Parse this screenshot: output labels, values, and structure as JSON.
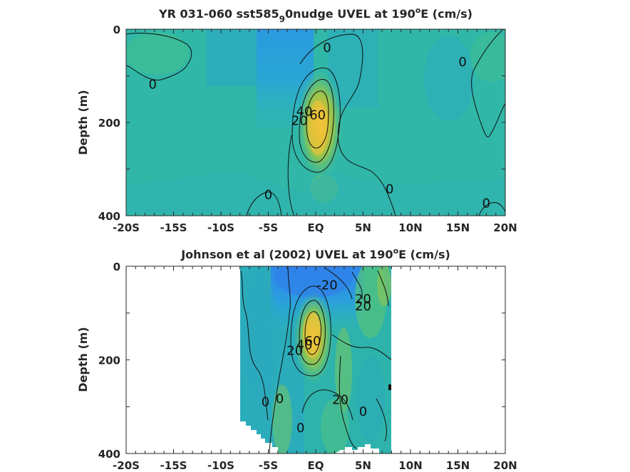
{
  "chart_data": [
    {
      "type": "heatmap",
      "title_main": "YR 031-060 sst585",
      "title_sub": "9",
      "title_rest": "0nudge UVEL at 190",
      "title_sup": "o",
      "title_end": "E (cm/s)",
      "ylabel": "Depth (m)",
      "xlim": [
        -20,
        20
      ],
      "ylim": [
        0,
        400
      ],
      "x_ticks": [
        -20,
        -15,
        -10,
        -5,
        0,
        5,
        10,
        15,
        20
      ],
      "x_tick_labels": [
        "-20S",
        "-15S",
        "-10S",
        "-5S",
        "EQ",
        "5N",
        "10N",
        "15N",
        "20N"
      ],
      "y_ticks": [
        0,
        200,
        400
      ],
      "y_tick_labels": [
        "0",
        "200",
        "400"
      ],
      "data_extent": [
        -20,
        20
      ],
      "jet": {
        "x": 0,
        "depth": 180,
        "max": 60
      },
      "contour_labels": [
        {
          "text": "0",
          "x": 1.2,
          "depth": 40
        },
        {
          "text": "0",
          "x": -17.2,
          "depth": 118
        },
        {
          "text": "0",
          "x": 15.5,
          "depth": 70
        },
        {
          "text": "20",
          "x": -1.7,
          "depth": 196
        },
        {
          "text": "40",
          "x": -1.2,
          "depth": 176
        },
        {
          "text": "60",
          "x": 0.2,
          "depth": 184
        },
        {
          "text": "0",
          "x": -5,
          "depth": 355
        },
        {
          "text": "0",
          "x": 7.8,
          "depth": 343
        },
        {
          "text": "0",
          "x": 18,
          "depth": 373
        }
      ]
    },
    {
      "type": "heatmap",
      "title_main": "Johnson et al (2002) UVEL at 190",
      "title_sup": "o",
      "title_end": "E (cm/s)",
      "ylabel": "Depth (m)",
      "xlim": [
        -20,
        20
      ],
      "ylim": [
        0,
        400
      ],
      "x_ticks": [
        -20,
        -15,
        -10,
        -5,
        0,
        5,
        10,
        15,
        20
      ],
      "x_tick_labels": [
        "-20S",
        "-15S",
        "-10S",
        "-5S",
        "EQ",
        "5N",
        "10N",
        "15N",
        "20N"
      ],
      "y_ticks": [
        0,
        200,
        400
      ],
      "y_tick_labels": [
        "0",
        "200",
        "400"
      ],
      "data_extent": [
        -8,
        8
      ],
      "jet": {
        "x": -0.2,
        "depth": 150,
        "max": 60
      },
      "contour_labels": [
        {
          "text": "-20",
          "x": 1.2,
          "depth": 40
        },
        {
          "text": "20",
          "x": 5,
          "depth": 70
        },
        {
          "text": "20",
          "x": 5,
          "depth": 85
        },
        {
          "text": "20",
          "x": -2.2,
          "depth": 180
        },
        {
          "text": "40",
          "x": -1.2,
          "depth": 168
        },
        {
          "text": "60",
          "x": -0.3,
          "depth": 160
        },
        {
          "text": "20",
          "x": 2.6,
          "depth": 285
        },
        {
          "text": "0",
          "x": -5.3,
          "depth": 290
        },
        {
          "text": "0",
          "x": -3.8,
          "depth": 283
        },
        {
          "text": "0",
          "x": -1.6,
          "depth": 345
        },
        {
          "text": "0",
          "x": 5,
          "depth": 310
        }
      ]
    }
  ]
}
